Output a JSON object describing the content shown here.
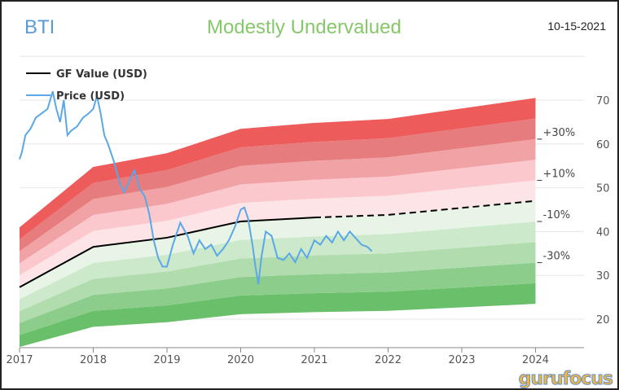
{
  "header": {
    "ticker": "BTI",
    "rating": "Modestly Undervalued",
    "date": "10-15-2021"
  },
  "branding": {
    "logo": "gurufocus"
  },
  "chart_data": {
    "type": "area",
    "legend": [
      {
        "name": "GF Value (USD)",
        "color": "#000000"
      },
      {
        "name": "Price (USD)",
        "color": "#5aa8e8"
      }
    ],
    "legend_position": "top-left",
    "x_ticks": [
      "2017",
      "2018",
      "2019",
      "2020",
      "2021",
      "2022",
      "2023",
      "2024"
    ],
    "y_ticks": [
      20,
      30,
      40,
      50,
      60,
      70
    ],
    "ylim": [
      10,
      80
    ],
    "xlim": [
      2017,
      2024
    ],
    "gf_value": {
      "x": [
        2017,
        2018,
        2019,
        2020,
        2021,
        2022,
        2024
      ],
      "y": [
        27.3,
        36.5,
        38.6,
        42.3,
        43.2,
        43.8,
        47.0
      ],
      "projected_from": 2021.0
    },
    "band_multipliers": [
      0.5,
      0.6,
      0.7,
      0.8,
      0.9,
      1.0,
      1.1,
      1.2,
      1.3,
      1.4,
      1.5
    ],
    "band_colors": [
      "#6abf6a",
      "#8ccd8c",
      "#b0dcae",
      "#cde9cb",
      "#e8f4e6",
      "#fde4e6",
      "#fbc8cd",
      "#f0a2a4",
      "#e67c7e",
      "#ee5b5b"
    ],
    "band_labels": [
      {
        "label": "+30%",
        "multiplier": 1.3
      },
      {
        "label": "+10%",
        "multiplier": 1.1
      },
      {
        "label": "-10%",
        "multiplier": 0.9
      },
      {
        "label": "-30%",
        "multiplier": 0.7
      }
    ],
    "price": {
      "x": [
        2017.0,
        2017.03,
        2017.08,
        2017.15,
        2017.22,
        2017.3,
        2017.38,
        2017.45,
        2017.5,
        2017.55,
        2017.6,
        2017.65,
        2017.7,
        2017.78,
        2017.86,
        2017.94,
        2018.0,
        2018.05,
        2018.1,
        2018.15,
        2018.2,
        2018.28,
        2018.36,
        2018.42,
        2018.5,
        2018.56,
        2018.62,
        2018.7,
        2018.76,
        2018.82,
        2018.88,
        2018.94,
        2019.0,
        2019.08,
        2019.18,
        2019.28,
        2019.36,
        2019.44,
        2019.52,
        2019.6,
        2019.68,
        2019.76,
        2019.84,
        2019.92,
        2020.0,
        2020.05,
        2020.1,
        2020.16,
        2020.2,
        2020.24,
        2020.28,
        2020.34,
        2020.42,
        2020.5,
        2020.58,
        2020.66,
        2020.74,
        2020.82,
        2020.9,
        2021.0,
        2021.08,
        2021.16,
        2021.24,
        2021.32,
        2021.4,
        2021.48,
        2021.56,
        2021.64,
        2021.72,
        2021.78
      ],
      "y": [
        56.5,
        58,
        62,
        63.5,
        66,
        67,
        68,
        72,
        68,
        65,
        70,
        62,
        63,
        64,
        66,
        67,
        68,
        71,
        67,
        62,
        60,
        56,
        51,
        49,
        52,
        54,
        50,
        48,
        44,
        38,
        34,
        32,
        32,
        37,
        42,
        39,
        35,
        38,
        36,
        37,
        34.5,
        36,
        38,
        41,
        45,
        45.5,
        43,
        37,
        32,
        28,
        34,
        40,
        39,
        34,
        33.5,
        35,
        33,
        36,
        34,
        38,
        37,
        39,
        37.5,
        40,
        38,
        40,
        38.5,
        37,
        36.5,
        35.5
      ]
    }
  }
}
